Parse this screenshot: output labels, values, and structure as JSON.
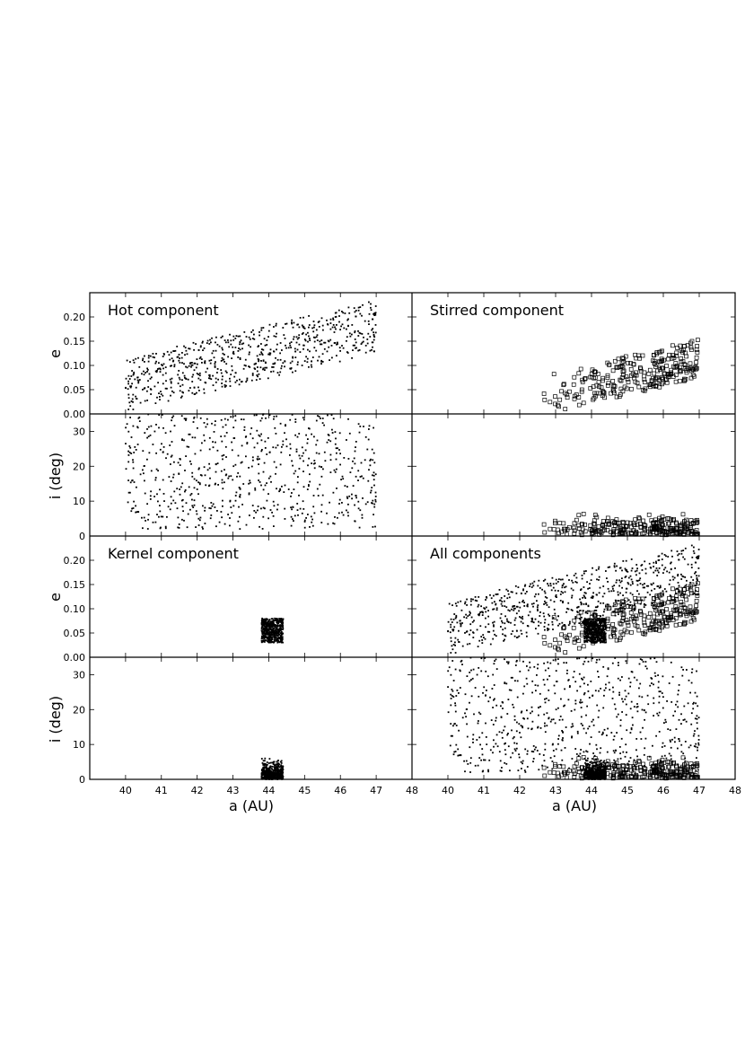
{
  "figure": {
    "xlabel": "a (AU)",
    "x_ticks": [
      "40",
      "41",
      "42",
      "43",
      "44",
      "45",
      "46",
      "47",
      "48"
    ],
    "e_ylabel": "e",
    "e_ticks": [
      "0.00",
      "0.05",
      "0.10",
      "0.15",
      "0.20"
    ],
    "i_ylabel": "i (deg)",
    "i_ticks": [
      "0",
      "10",
      "20",
      "30"
    ]
  },
  "chart_data": [
    {
      "type": "scatter",
      "title": "Hot component",
      "panel": "top-left",
      "marker": "dot",
      "xlim": [
        39,
        48
      ],
      "e_ylim": [
        0,
        0.25
      ],
      "i_ylim": [
        0,
        35
      ],
      "a_range": [
        40,
        47
      ],
      "e_range": [
        0.0,
        0.25
      ],
      "i_range": [
        2,
        35
      ],
      "n_points": 700,
      "trend": "e increases with a"
    },
    {
      "type": "scatter",
      "title": "Stirred component",
      "panel": "top-right",
      "marker": "open-square",
      "xlim": [
        39,
        48
      ],
      "e_ylim": [
        0,
        0.25
      ],
      "i_ylim": [
        0,
        35
      ],
      "a_range": [
        42.4,
        47
      ],
      "e_range": [
        0.01,
        0.19
      ],
      "i_range": [
        0,
        9.5
      ],
      "n_points": 270,
      "trend": "e increases with a"
    },
    {
      "type": "scatter",
      "title": "Kernel component",
      "panel": "bottom-left",
      "marker": "dot",
      "xlim": [
        39,
        48
      ],
      "e_ylim": [
        0,
        0.25
      ],
      "i_ylim": [
        0,
        35
      ],
      "a_range": [
        43.8,
        44.4
      ],
      "e_range": [
        0.03,
        0.08
      ],
      "i_range": [
        0,
        9
      ],
      "n_points": 500,
      "trend": "tight clump"
    },
    {
      "type": "scatter",
      "title": "All components",
      "panel": "bottom-right",
      "marker": "mixed",
      "xlim": [
        39,
        48
      ],
      "e_ylim": [
        0,
        0.25
      ],
      "i_ylim": [
        0,
        35
      ],
      "components": [
        "Hot component",
        "Stirred component",
        "Kernel component"
      ]
    }
  ]
}
